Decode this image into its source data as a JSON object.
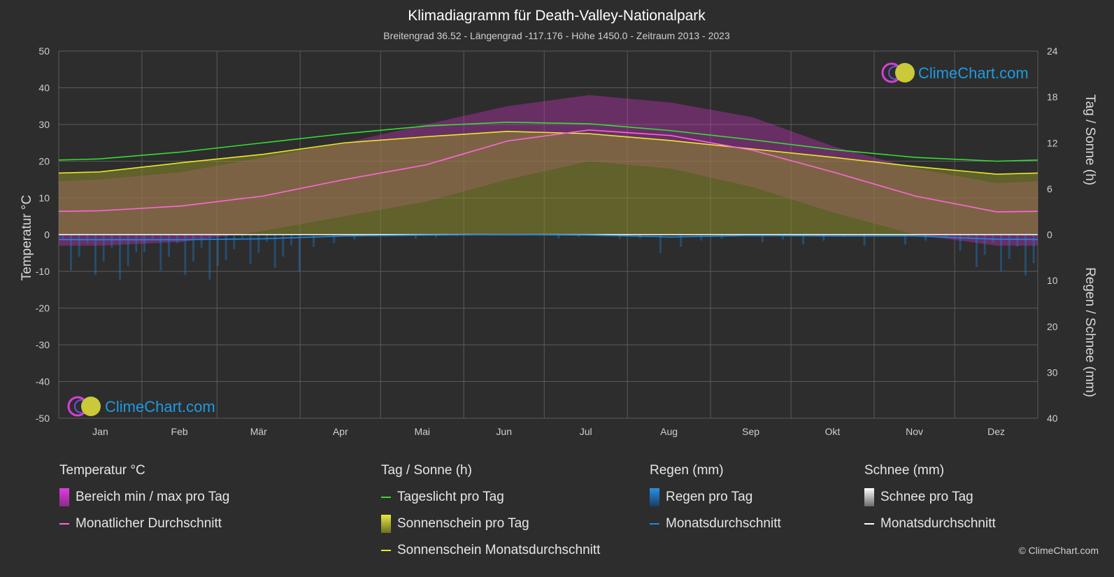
{
  "header": {
    "title": "Klimadiagramm für Death-Valley-Nationalpark",
    "subtitle": "Breitengrad 36.52 - Längengrad -117.176 - Höhe 1450.0 - Zeitraum 2013 - 2023"
  },
  "axes": {
    "left_title": "Temperatur °C",
    "right_top_title": "Tag / Sonne (h)",
    "right_bottom_title": "Regen / Schnee (mm)"
  },
  "logo": {
    "text": "ClimeChart.com"
  },
  "copyright": "© ClimeChart.com",
  "legend": {
    "temperature": {
      "heading": "Temperatur °C",
      "range_label": "Bereich min / max pro Tag",
      "avg_label": "Monatlicher Durchschnitt"
    },
    "sun": {
      "heading": "Tag / Sonne (h)",
      "daylight_label": "Tageslicht pro Tag",
      "sunshine_label": "Sonnenschein pro Tag",
      "sunshine_avg_label": "Sonnenschein Monatsdurchschnitt"
    },
    "rain": {
      "heading": "Regen (mm)",
      "daily_label": "Regen pro Tag",
      "avg_label": "Monatsdurchschnitt"
    },
    "snow": {
      "heading": "Schnee (mm)",
      "daily_label": "Schnee pro Tag",
      "avg_label": "Monatsdurchschnitt"
    }
  },
  "colors": {
    "background": "#2d2d2d",
    "grid": "#5a5a5a",
    "temp_range": "#d633cc",
    "temp_avg": "#ff66dd",
    "daylight": "#33dd33",
    "sunshine_fill": "#8c8c2a",
    "sunshine_avg": "#e8e82a",
    "rain": "#1e88e5",
    "snow": "#ffffff"
  },
  "chart_data": {
    "type": "line",
    "categories": [
      "Jan",
      "Feb",
      "Mär",
      "Apr",
      "Mai",
      "Jun",
      "Jul",
      "Aug",
      "Sep",
      "Okt",
      "Nov",
      "Dez"
    ],
    "left_axis": {
      "min": -50,
      "max": 50,
      "ticks": [
        50,
        40,
        30,
        20,
        10,
        0,
        -10,
        -20,
        -30,
        -40,
        -50
      ]
    },
    "right_top_axis": {
      "min": 0,
      "max": 24,
      "ticks": [
        24,
        18,
        12,
        6,
        0
      ]
    },
    "right_bottom_axis": {
      "min": 0,
      "max": 40,
      "ticks": [
        0,
        10,
        20,
        30,
        40
      ]
    },
    "series": [
      {
        "name": "Monatlicher Durchschnitt",
        "axis": "temperature",
        "values": [
          6.5,
          7.8,
          10.5,
          15.0,
          19.0,
          25.5,
          28.5,
          27.0,
          23.0,
          17.0,
          10.5,
          6.2
        ]
      },
      {
        "name": "Tageslicht pro Tag",
        "axis": "hours",
        "values": [
          9.9,
          10.8,
          12.0,
          13.2,
          14.2,
          14.7,
          14.5,
          13.6,
          12.4,
          11.1,
          10.1,
          9.6
        ]
      },
      {
        "name": "Sonnenschein Monatsdurchschnitt",
        "axis": "hours",
        "values": [
          8.2,
          9.4,
          10.5,
          12.0,
          12.8,
          13.5,
          13.2,
          12.3,
          11.2,
          10.1,
          8.9,
          7.9
        ]
      },
      {
        "name": "Regen Monatsdurchschnitt",
        "axis": "precip",
        "values": [
          1.1,
          1.1,
          0.9,
          0.3,
          0.1,
          0.0,
          0.1,
          0.5,
          0.2,
          0.3,
          0.3,
          1.0
        ]
      },
      {
        "name": "Schnee Monatsdurchschnitt",
        "axis": "precip",
        "values": [
          0,
          0,
          0,
          0,
          0,
          0,
          0,
          0,
          0,
          0,
          0,
          0
        ]
      }
    ],
    "temp_range": {
      "min": [
        -3,
        -2,
        1,
        5,
        9,
        15,
        20,
        18,
        13,
        6,
        0,
        -3
      ],
      "max": [
        15,
        17,
        21,
        25,
        30,
        35,
        38,
        36,
        32,
        24,
        18,
        14
      ]
    },
    "grid": true
  }
}
